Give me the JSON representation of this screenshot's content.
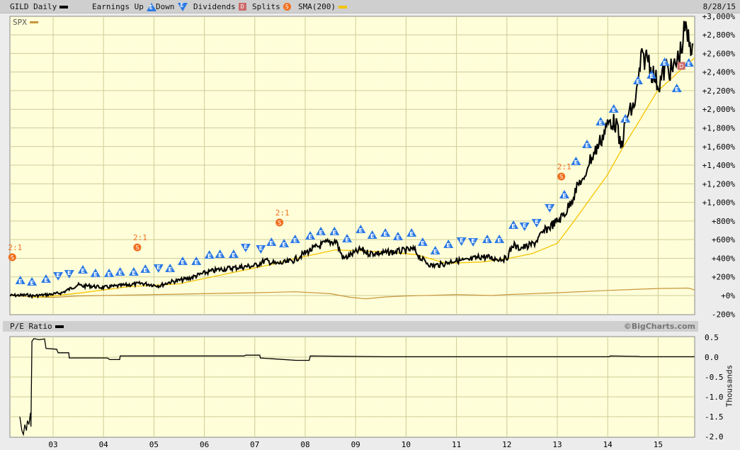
{
  "header": {
    "symbol_label": "GILD Daily",
    "earnings_label": "Earnings Up",
    "down_label": "Down",
    "dividends_label": "Dividends",
    "splits_label": "Splits",
    "sma_label": "SMA(200)",
    "date": "8/28/15",
    "spx_label": "SPX",
    "pe_label": "P/E Ratio",
    "copyright": "©BigCharts.com",
    "thousands_label": "Thousands"
  },
  "marker_letters": {
    "earnings": "E",
    "dividend": "D",
    "split": "S"
  },
  "colors": {
    "price": "#000000",
    "sma": "#f5c400",
    "spx": "#c8963c",
    "earnings": "#2a78e4",
    "split": "#f07020",
    "dividend": "#cc6b6b",
    "plot_bg": "#ffffdc",
    "grid": "#cccc99"
  },
  "chart_data": [
    {
      "type": "line",
      "title": "GILD Daily",
      "y_scale": "percent change",
      "ylim": [
        -200,
        3000
      ],
      "xlim": [
        "2002-02",
        "2015-08-28"
      ],
      "grid": true,
      "legend_placement": "top",
      "y_ticks": [
        "+3,000%",
        "+2,800%",
        "+2,600%",
        "+2,400%",
        "+2,200%",
        "+2,000%",
        "+1,800%",
        "+1,600%",
        "+1,400%",
        "+1,200%",
        "+1,000%",
        "+800%",
        "+600%",
        "+400%",
        "+200%",
        "+0%",
        "-200%"
      ],
      "y_tick_values": [
        3000,
        2800,
        2600,
        2400,
        2200,
        2000,
        1800,
        1600,
        1400,
        1200,
        1000,
        800,
        600,
        400,
        200,
        0,
        -200
      ],
      "x_ticks": [
        "03",
        "04",
        "05",
        "06",
        "07",
        "08",
        "09",
        "10",
        "11",
        "12",
        "13",
        "14",
        "15"
      ],
      "x_tick_values": [
        2003,
        2004,
        2005,
        2006,
        2007,
        2008,
        2009,
        2010,
        2011,
        2012,
        2013,
        2014,
        2015
      ],
      "series": [
        {
          "name": "GILD Daily",
          "points": [
            [
              2002.14,
              0
            ],
            [
              2002.51,
              5
            ],
            [
              2002.58,
              -5
            ],
            [
              2003.0,
              15
            ],
            [
              2003.18,
              30
            ],
            [
              2003.49,
              115
            ],
            [
              2003.6,
              100
            ],
            [
              2003.7,
              105
            ],
            [
              2003.98,
              85
            ],
            [
              2004.33,
              105
            ],
            [
              2004.76,
              130
            ],
            [
              2005.11,
              105
            ],
            [
              2005.32,
              145
            ],
            [
              2005.53,
              165
            ],
            [
              2005.67,
              180
            ],
            [
              2006.02,
              245
            ],
            [
              2006.3,
              280
            ],
            [
              2006.72,
              305
            ],
            [
              2007.0,
              320
            ],
            [
              2007.21,
              375
            ],
            [
              2007.42,
              340
            ],
            [
              2007.63,
              355
            ],
            [
              2007.78,
              380
            ],
            [
              2007.99,
              455
            ],
            [
              2008.13,
              495
            ],
            [
              2008.41,
              565
            ],
            [
              2008.62,
              585
            ],
            [
              2008.66,
              510
            ],
            [
              2008.76,
              395
            ],
            [
              2008.97,
              455
            ],
            [
              2009.11,
              495
            ],
            [
              2009.25,
              455
            ],
            [
              2009.53,
              455
            ],
            [
              2009.81,
              470
            ],
            [
              2010.16,
              495
            ],
            [
              2010.3,
              395
            ],
            [
              2010.51,
              320
            ],
            [
              2010.72,
              335
            ],
            [
              2010.94,
              375
            ],
            [
              2011.22,
              375
            ],
            [
              2011.5,
              420
            ],
            [
              2011.78,
              395
            ],
            [
              2011.99,
              395
            ],
            [
              2012.13,
              550
            ],
            [
              2012.2,
              510
            ],
            [
              2012.41,
              525
            ],
            [
              2012.55,
              565
            ],
            [
              2012.76,
              700
            ],
            [
              2013.04,
              815
            ],
            [
              2013.18,
              905
            ],
            [
              2013.39,
              1155
            ],
            [
              2013.46,
              1240
            ],
            [
              2013.53,
              1200
            ],
            [
              2013.6,
              1410
            ],
            [
              2013.74,
              1535
            ],
            [
              2013.88,
              1690
            ],
            [
              2013.96,
              1790
            ],
            [
              2014.05,
              1880
            ],
            [
              2014.17,
              1840
            ],
            [
              2014.26,
              1575
            ],
            [
              2014.38,
              1920
            ],
            [
              2014.52,
              2030
            ],
            [
              2014.59,
              2220
            ],
            [
              2014.66,
              2525
            ],
            [
              2014.8,
              2565
            ],
            [
              2014.87,
              2410
            ],
            [
              2015.01,
              2260
            ],
            [
              2015.15,
              2450
            ],
            [
              2015.29,
              2410
            ],
            [
              2015.46,
              2640
            ],
            [
              2015.53,
              2870
            ],
            [
              2015.6,
              2750
            ],
            [
              2015.68,
              2680
            ],
            [
              2015.72,
              2490
            ]
          ]
        },
        {
          "name": "SMA(200)",
          "points": [
            [
              2002.58,
              -20
            ],
            [
              2003.0,
              -5
            ],
            [
              2003.5,
              25
            ],
            [
              2004.5,
              95
            ],
            [
              2005.5,
              125
            ],
            [
              2006.5,
              240
            ],
            [
              2007.3,
              330
            ],
            [
              2008.0,
              420
            ],
            [
              2008.6,
              490
            ],
            [
              2009.5,
              470
            ],
            [
              2010.2,
              440
            ],
            [
              2010.8,
              345
            ],
            [
              2011.5,
              360
            ],
            [
              2012.0,
              395
            ],
            [
              2012.5,
              450
            ],
            [
              2013.0,
              560
            ],
            [
              2013.32,
              790
            ],
            [
              2013.6,
              1000
            ],
            [
              2014.0,
              1300
            ],
            [
              2014.31,
              1600
            ],
            [
              2014.6,
              1850
            ],
            [
              2014.97,
              2185
            ],
            [
              2015.4,
              2400
            ],
            [
              2015.72,
              2550
            ]
          ]
        },
        {
          "name": "SPX",
          "points": [
            [
              2002.14,
              0
            ],
            [
              2002.6,
              -15
            ],
            [
              2003.0,
              -20
            ],
            [
              2003.5,
              -5
            ],
            [
              2004.0,
              0
            ],
            [
              2005.0,
              10
            ],
            [
              2006.0,
              20
            ],
            [
              2007.0,
              30
            ],
            [
              2007.8,
              40
            ],
            [
              2008.5,
              20
            ],
            [
              2008.9,
              -20
            ],
            [
              2009.2,
              -35
            ],
            [
              2009.6,
              -15
            ],
            [
              2010.0,
              -5
            ],
            [
              2011.0,
              10
            ],
            [
              2011.7,
              0
            ],
            [
              2012.0,
              10
            ],
            [
              2013.0,
              30
            ],
            [
              2014.0,
              55
            ],
            [
              2015.0,
              75
            ],
            [
              2015.6,
              80
            ],
            [
              2015.72,
              60
            ]
          ]
        }
      ],
      "earnings": [
        [
          2002.35,
          167,
          "up"
        ],
        [
          2002.58,
          152,
          "up"
        ],
        [
          2002.86,
          183,
          "up"
        ],
        [
          2003.1,
          205,
          "down"
        ],
        [
          2003.32,
          228,
          "down"
        ],
        [
          2003.59,
          282,
          "up"
        ],
        [
          2003.84,
          244,
          "up"
        ],
        [
          2004.11,
          244,
          "up"
        ],
        [
          2004.33,
          259,
          "up"
        ],
        [
          2004.6,
          259,
          "up"
        ],
        [
          2004.83,
          289,
          "up"
        ],
        [
          2005.09,
          289,
          "down"
        ],
        [
          2005.32,
          297,
          "up"
        ],
        [
          2005.57,
          373,
          "up"
        ],
        [
          2005.84,
          373,
          "up"
        ],
        [
          2006.1,
          441,
          "up"
        ],
        [
          2006.31,
          449,
          "up"
        ],
        [
          2006.58,
          449,
          "up"
        ],
        [
          2006.82,
          510,
          "down"
        ],
        [
          2007.12,
          495,
          "down"
        ],
        [
          2007.33,
          578,
          "up"
        ],
        [
          2007.58,
          563,
          "up"
        ],
        [
          2007.8,
          609,
          "up"
        ],
        [
          2008.1,
          647,
          "up"
        ],
        [
          2008.31,
          693,
          "up"
        ],
        [
          2008.58,
          693,
          "up"
        ],
        [
          2008.83,
          616,
          "up"
        ],
        [
          2009.1,
          715,
          "up"
        ],
        [
          2009.33,
          654,
          "up"
        ],
        [
          2009.59,
          677,
          "up"
        ],
        [
          2009.84,
          639,
          "up"
        ],
        [
          2010.11,
          677,
          "up"
        ],
        [
          2010.33,
          578,
          "up"
        ],
        [
          2010.58,
          487,
          "up"
        ],
        [
          2010.84,
          556,
          "up"
        ],
        [
          2011.1,
          578,
          "down"
        ],
        [
          2011.33,
          571,
          "down"
        ],
        [
          2011.61,
          609,
          "up"
        ],
        [
          2011.85,
          609,
          "up"
        ],
        [
          2012.13,
          761,
          "up"
        ],
        [
          2012.35,
          738,
          "down"
        ],
        [
          2012.59,
          776,
          "down"
        ],
        [
          2012.85,
          936,
          "down"
        ],
        [
          2013.14,
          1088,
          "up"
        ],
        [
          2013.37,
          1446,
          "up"
        ],
        [
          2013.59,
          1629,
          "up"
        ],
        [
          2013.86,
          1872,
          "up"
        ],
        [
          2014.12,
          2009,
          "up"
        ],
        [
          2014.35,
          1903,
          "up"
        ],
        [
          2014.6,
          2313,
          "up"
        ],
        [
          2014.87,
          2374,
          "up"
        ],
        [
          2015.13,
          2511,
          "up"
        ],
        [
          2015.37,
          2230,
          "up"
        ],
        [
          2015.61,
          2504,
          "up"
        ]
      ],
      "splits": [
        {
          "x": 2002.19,
          "y": 411,
          "label": "2:1"
        },
        {
          "x": 2004.67,
          "y": 517,
          "label": "2:1"
        },
        {
          "x": 2007.49,
          "y": 784,
          "label": "2:1"
        },
        {
          "x": 2013.08,
          "y": 1278,
          "label": "2:1"
        }
      ],
      "dividends": [
        [
          2015.46,
          2466
        ]
      ]
    },
    {
      "type": "line",
      "title": "P/E Ratio",
      "ylabel": "Thousands",
      "ylim": [
        -2.0,
        0.5
      ],
      "grid": true,
      "y_ticks": [
        "0.5",
        "0.0",
        "-0.5",
        "-1.0",
        "-1.5",
        "-2.0"
      ],
      "y_tick_values": [
        0.5,
        0,
        -0.5,
        -1.0,
        -1.5,
        -2.0
      ],
      "x_ticks": [
        "03",
        "04",
        "05",
        "06",
        "07",
        "08",
        "09",
        "10",
        "11",
        "12",
        "13",
        "14",
        "15"
      ],
      "x_tick_values": [
        2003,
        2004,
        2005,
        2006,
        2007,
        2008,
        2009,
        2010,
        2011,
        2012,
        2013,
        2014,
        2015
      ],
      "series": [
        {
          "name": "P/E Ratio",
          "points": [
            [
              2002.34,
              -1.5
            ],
            [
              2002.38,
              -1.85
            ],
            [
              2002.41,
              -1.95
            ],
            [
              2002.44,
              -1.7
            ],
            [
              2002.47,
              -1.85
            ],
            [
              2002.49,
              -1.6
            ],
            [
              2002.52,
              -1.7
            ],
            [
              2002.55,
              -1.4
            ],
            [
              2002.56,
              -1.75
            ],
            [
              2002.58,
              0.4
            ],
            [
              2002.62,
              0.47
            ],
            [
              2002.72,
              0.44
            ],
            [
              2002.83,
              0.46
            ],
            [
              2002.86,
              0.22
            ],
            [
              2003.07,
              0.2
            ],
            [
              2003.1,
              0.11
            ],
            [
              2003.31,
              0.11
            ],
            [
              2003.32,
              -0.02
            ],
            [
              2004.08,
              -0.02
            ],
            [
              2004.12,
              -0.06
            ],
            [
              2004.32,
              -0.06
            ],
            [
              2004.33,
              0.03
            ],
            [
              2006.79,
              0.03
            ],
            [
              2006.82,
              0.05
            ],
            [
              2007.1,
              0.05
            ],
            [
              2007.11,
              -0.02
            ],
            [
              2007.33,
              -0.04
            ],
            [
              2007.82,
              -0.08
            ],
            [
              2008.08,
              -0.08
            ],
            [
              2008.1,
              0.03
            ],
            [
              2009.6,
              0.01
            ],
            [
              2014.03,
              0.01
            ],
            [
              2014.05,
              0.03
            ],
            [
              2014.59,
              0.02
            ],
            [
              2014.66,
              0.01
            ],
            [
              2015.72,
              0.01
            ]
          ]
        }
      ]
    }
  ]
}
